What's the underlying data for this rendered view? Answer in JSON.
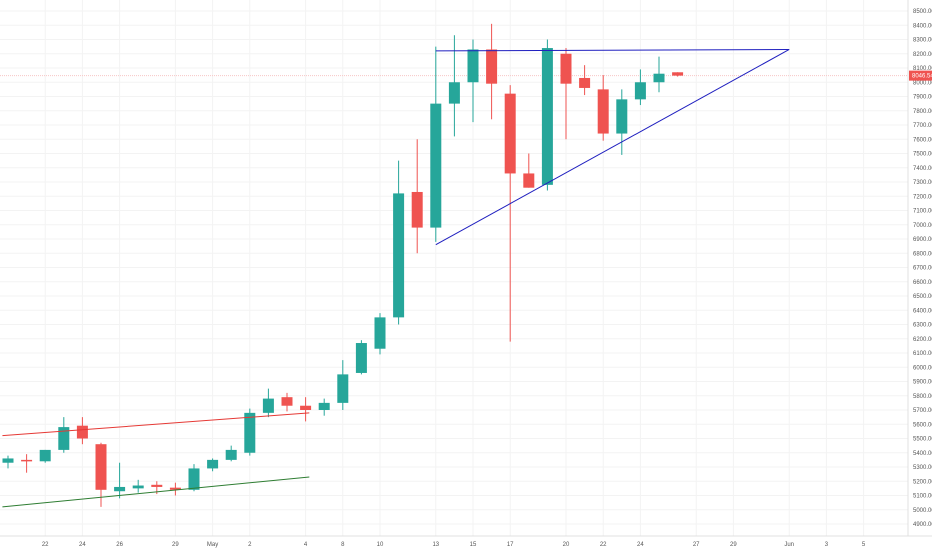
{
  "chart_data": {
    "type": "candlestick",
    "colors": {
      "up": "#26a69a",
      "down": "#ef5350",
      "grid": "#f3f3f3",
      "axis_text": "#555555",
      "current_line": "#f7c6c6",
      "current_label_bg": "#ef5350",
      "trendline_blue": "#1f1fbf",
      "trendline_red": "#e53935",
      "trendline_green": "#2e7d32"
    },
    "y_axis": {
      "ylim": [
        4850,
        8560
      ],
      "ticks": [
        "8500.00",
        "8400.00",
        "8300.00",
        "8200.00",
        "8100.00",
        "8000.00",
        "7900.00",
        "7800.00",
        "7700.00",
        "7600.00",
        "7500.00",
        "7400.00",
        "7300.00",
        "7200.00",
        "7100.00",
        "7000.00",
        "6900.00",
        "6800.00",
        "6700.00",
        "6600.00",
        "6500.00",
        "6400.00",
        "6300.00",
        "6200.00",
        "6100.00",
        "6000.00",
        "5900.00",
        "5800.00",
        "5700.00",
        "5600.00",
        "5500.00",
        "5400.00",
        "5300.00",
        "5200.00",
        "5100.00",
        "5000.00",
        "4900.00"
      ]
    },
    "x_axis": {
      "labels": [
        {
          "label": "22",
          "index": 2
        },
        {
          "label": "24",
          "index": 4
        },
        {
          "label": "26",
          "index": 6
        },
        {
          "label": "29",
          "index": 9
        },
        {
          "label": "May",
          "index": 11
        },
        {
          "label": "2",
          "index": 13
        },
        {
          "label": "4",
          "index": 16
        },
        {
          "label": "8",
          "index": 18
        },
        {
          "label": "10",
          "index": 20
        },
        {
          "label": "13",
          "index": 23
        },
        {
          "label": "15",
          "index": 25
        },
        {
          "label": "17",
          "index": 27
        },
        {
          "label": "20",
          "index": 30
        },
        {
          "label": "22",
          "index": 32
        },
        {
          "label": "24",
          "index": 34
        },
        {
          "label": "27",
          "index": 37
        },
        {
          "label": "29",
          "index": 39
        },
        {
          "label": "Jun",
          "index": 42
        },
        {
          "label": "3",
          "index": 44
        },
        {
          "label": "5",
          "index": 46
        }
      ]
    },
    "current_price": {
      "value": 8046.54,
      "label": "8046.54"
    },
    "candles": [
      {
        "i": 0,
        "o": 5330,
        "h": 5380,
        "l": 5290,
        "c": 5360
      },
      {
        "i": 1,
        "o": 5350,
        "h": 5390,
        "l": 5260,
        "c": 5340
      },
      {
        "i": 2,
        "o": 5340,
        "h": 5420,
        "l": 5330,
        "c": 5420
      },
      {
        "i": 3,
        "o": 5420,
        "h": 5650,
        "l": 5400,
        "c": 5580
      },
      {
        "i": 4,
        "o": 5590,
        "h": 5650,
        "l": 5460,
        "c": 5500
      },
      {
        "i": 5,
        "o": 5460,
        "h": 5470,
        "l": 5020,
        "c": 5140
      },
      {
        "i": 6,
        "o": 5130,
        "h": 5330,
        "l": 5080,
        "c": 5160
      },
      {
        "i": 7,
        "o": 5150,
        "h": 5210,
        "l": 5120,
        "c": 5170
      },
      {
        "i": 8,
        "o": 5175,
        "h": 5200,
        "l": 5110,
        "c": 5160
      },
      {
        "i": 9,
        "o": 5155,
        "h": 5190,
        "l": 5100,
        "c": 5140
      },
      {
        "i": 10,
        "o": 5140,
        "h": 5320,
        "l": 5130,
        "c": 5290
      },
      {
        "i": 11,
        "o": 5290,
        "h": 5360,
        "l": 5270,
        "c": 5350
      },
      {
        "i": 12,
        "o": 5350,
        "h": 5450,
        "l": 5340,
        "c": 5420
      },
      {
        "i": 13,
        "o": 5400,
        "h": 5710,
        "l": 5380,
        "c": 5680
      },
      {
        "i": 14,
        "o": 5680,
        "h": 5850,
        "l": 5650,
        "c": 5780
      },
      {
        "i": 15,
        "o": 5790,
        "h": 5820,
        "l": 5690,
        "c": 5730
      },
      {
        "i": 16,
        "o": 5730,
        "h": 5790,
        "l": 5620,
        "c": 5700
      },
      {
        "i": 17,
        "o": 5700,
        "h": 5780,
        "l": 5660,
        "c": 5750
      },
      {
        "i": 18,
        "o": 5750,
        "h": 6050,
        "l": 5700,
        "c": 5950
      },
      {
        "i": 19,
        "o": 5960,
        "h": 6190,
        "l": 5950,
        "c": 6170
      },
      {
        "i": 20,
        "o": 6130,
        "h": 6380,
        "l": 6090,
        "c": 6350
      },
      {
        "i": 21,
        "o": 6350,
        "h": 7450,
        "l": 6300,
        "c": 7220
      },
      {
        "i": 22,
        "o": 7230,
        "h": 7600,
        "l": 6800,
        "c": 6980
      },
      {
        "i": 23,
        "o": 6980,
        "h": 8250,
        "l": 6880,
        "c": 7850
      },
      {
        "i": 24,
        "o": 7850,
        "h": 8330,
        "l": 7620,
        "c": 8000
      },
      {
        "i": 25,
        "o": 8000,
        "h": 8300,
        "l": 7720,
        "c": 8230
      },
      {
        "i": 26,
        "o": 8230,
        "h": 8410,
        "l": 7740,
        "c": 7990
      },
      {
        "i": 27,
        "o": 7920,
        "h": 7980,
        "l": 6180,
        "c": 7360
      },
      {
        "i": 28,
        "o": 7360,
        "h": 7500,
        "l": 7260,
        "c": 7260
      },
      {
        "i": 29,
        "o": 7280,
        "h": 8300,
        "l": 7240,
        "c": 8240
      },
      {
        "i": 30,
        "o": 8200,
        "h": 8240,
        "l": 7600,
        "c": 7990
      },
      {
        "i": 31,
        "o": 8030,
        "h": 8120,
        "l": 7910,
        "c": 7960
      },
      {
        "i": 32,
        "o": 7950,
        "h": 8050,
        "l": 7590,
        "c": 7640
      },
      {
        "i": 33,
        "o": 7640,
        "h": 7950,
        "l": 7490,
        "c": 7880
      },
      {
        "i": 34,
        "o": 7880,
        "h": 8090,
        "l": 7840,
        "c": 8000
      },
      {
        "i": 35,
        "o": 8000,
        "h": 8180,
        "l": 7930,
        "c": 8060
      },
      {
        "i": 36,
        "o": 8070,
        "h": 8070,
        "l": 8040,
        "c": 8046.54
      }
    ],
    "trendlines": [
      {
        "name": "blue-top",
        "color": "#1f1fbf",
        "x1": 23,
        "y1": 8220,
        "x2": 42,
        "y2": 8230
      },
      {
        "name": "blue-bottom",
        "color": "#1f1fbf",
        "x1": 23,
        "y1": 6860,
        "x2": 42,
        "y2": 8230
      },
      {
        "name": "red",
        "color": "#e53935",
        "x1": -0.3,
        "y1": 5520,
        "x2": 16.2,
        "y2": 5680
      },
      {
        "name": "green",
        "color": "#2e7d32",
        "x1": -0.3,
        "y1": 5020,
        "x2": 16.2,
        "y2": 5230
      }
    ]
  }
}
